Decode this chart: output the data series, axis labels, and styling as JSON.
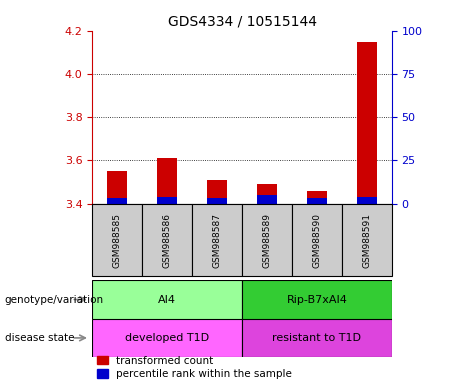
{
  "title": "GDS4334 / 10515144",
  "samples": [
    "GSM988585",
    "GSM988586",
    "GSM988587",
    "GSM988589",
    "GSM988590",
    "GSM988591"
  ],
  "transformed_count": [
    3.55,
    3.61,
    3.51,
    3.49,
    3.46,
    4.15
  ],
  "percentile_rank": [
    3,
    4,
    3,
    5,
    3,
    4
  ],
  "ylim_left": [
    3.4,
    4.2
  ],
  "ylim_right": [
    0,
    100
  ],
  "yticks_left": [
    3.4,
    3.6,
    3.8,
    4.0,
    4.2
  ],
  "yticks_right": [
    0,
    25,
    50,
    75,
    100
  ],
  "bar_bottom": 3.4,
  "red_color": "#cc0000",
  "blue_color": "#0000cc",
  "groups": [
    {
      "label": "AI4",
      "samples_idx": [
        0,
        1,
        2
      ],
      "color": "#99ff99"
    },
    {
      "label": "Rip-B7xAI4",
      "samples_idx": [
        3,
        4,
        5
      ],
      "color": "#33cc33"
    }
  ],
  "disease_groups": [
    {
      "label": "developed T1D",
      "samples_idx": [
        0,
        1,
        2
      ],
      "color": "#ff66ff"
    },
    {
      "label": "resistant to T1D",
      "samples_idx": [
        3,
        4,
        5
      ],
      "color": "#dd44dd"
    }
  ],
  "row_labels": [
    "genotype/variation",
    "disease state"
  ],
  "legend_red": "transformed count",
  "legend_blue": "percentile rank within the sample",
  "tick_color_left": "#cc0000",
  "tick_color_right": "#0000cc",
  "bar_width": 0.4,
  "sample_box_color": "#cccccc",
  "arrow_color": "#888888"
}
